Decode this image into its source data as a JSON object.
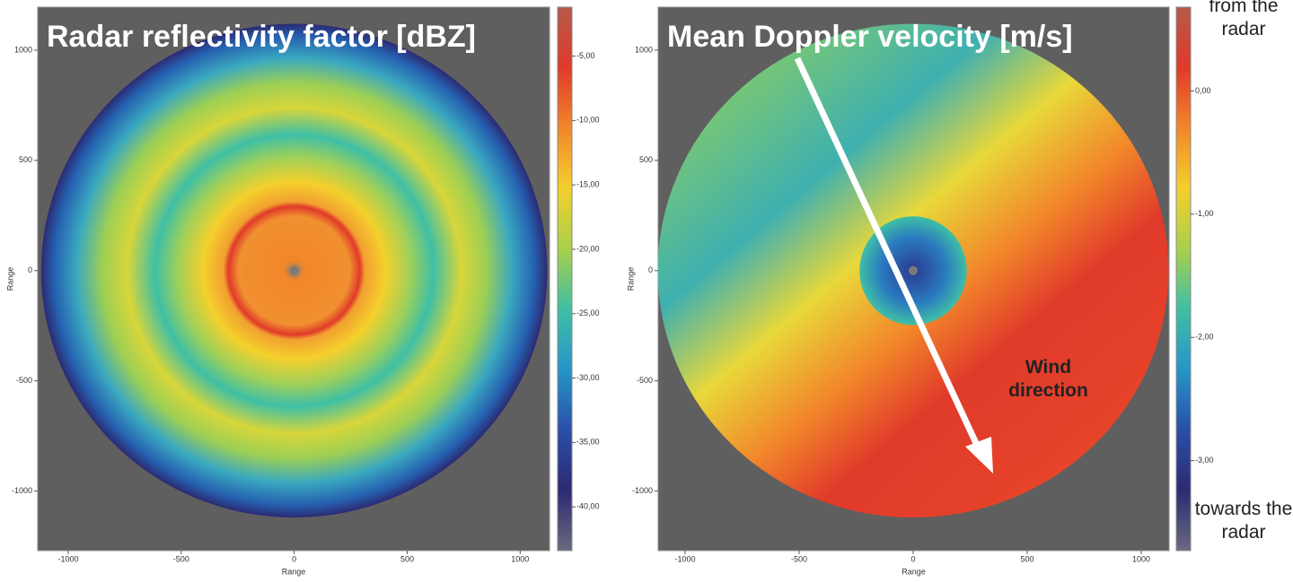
{
  "chart_data": [
    {
      "type": "heatmap",
      "title": "Radar reflectivity factor [dBZ]",
      "xlabel": "Range",
      "ylabel": "Range",
      "xlim": [
        -1135,
        1130
      ],
      "ylim": [
        -1270,
        1195
      ],
      "xticks": [
        -1000,
        -500,
        0,
        500,
        1000
      ],
      "yticks": [
        -1000,
        -500,
        0,
        500,
        1000
      ],
      "colorbar": {
        "lim": [
          -43.4,
          -1.2
        ],
        "ticks": [
          {
            "value": -5,
            "label": "-5,00"
          },
          {
            "value": -10,
            "label": "-10,00"
          },
          {
            "value": -15,
            "label": "-15,00"
          },
          {
            "value": -20,
            "label": "-20,00"
          },
          {
            "value": -25,
            "label": "-25,00"
          },
          {
            "value": -30,
            "label": "-30,00"
          },
          {
            "value": -35,
            "label": "-35,00"
          },
          {
            "value": -40,
            "label": "-40,00"
          }
        ],
        "colormap": [
          "#b65a4a",
          "#e03a2a",
          "#f2862a",
          "#f4d02c",
          "#a9d04a",
          "#3fbfa5",
          "#2596c8",
          "#2a4fa8",
          "#2c2a72",
          "#6a6a80"
        ]
      }
    },
    {
      "type": "heatmap",
      "title": "Mean Doppler velocity [m/s]",
      "xlabel": "Range",
      "ylabel": "Range",
      "xlim": [
        -1118,
        1122
      ],
      "ylim": [
        -1270,
        1195
      ],
      "xticks": [
        -1000,
        -500,
        0,
        500,
        1000
      ],
      "yticks": [
        -1000,
        -500,
        0,
        500,
        1000
      ],
      "colorbar": {
        "lim": [
          -3.73,
          0.68
        ],
        "ticks": [
          {
            "value": 0,
            "label": "0,00"
          },
          {
            "value": -1,
            "label": "-1,00"
          },
          {
            "value": -2,
            "label": "-2,00"
          },
          {
            "value": -3,
            "label": "-3,00"
          }
        ],
        "colormap": [
          "#b65a4a",
          "#e03a2a",
          "#f2862a",
          "#f4d02c",
          "#a9d04a",
          "#3fbfa5",
          "#2596c8",
          "#2a4fa8",
          "#2c2a72",
          "#6a6a80"
        ]
      },
      "annotations": {
        "top": "from the radar",
        "bottom": "towards the radar",
        "arrow": "Wind direction"
      }
    }
  ]
}
